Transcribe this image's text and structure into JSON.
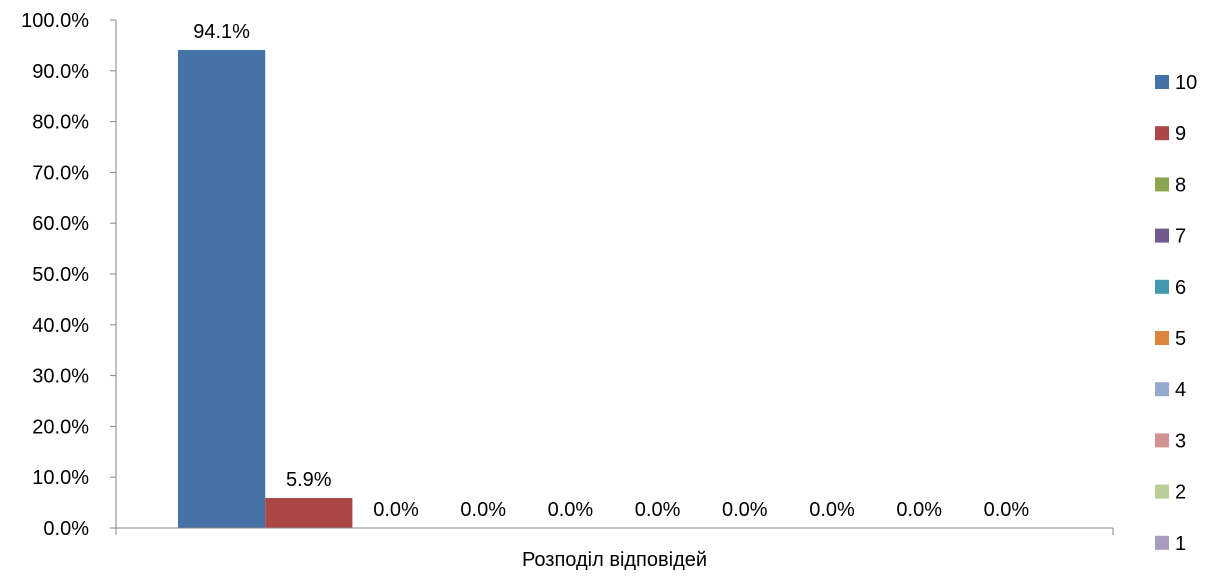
{
  "chart_data": {
    "type": "bar",
    "categories": [
      "Розподіл відповідей"
    ],
    "xlabel": "Розподіл відповідей",
    "ylabel": "",
    "title": "",
    "ylim": [
      0,
      100
    ],
    "yticks": [
      "0.0%",
      "10.0%",
      "20.0%",
      "30.0%",
      "40.0%",
      "50.0%",
      "60.0%",
      "70.0%",
      "80.0%",
      "90.0%",
      "100.0%"
    ],
    "grid": false,
    "legend_position": "right",
    "series": [
      {
        "name": "10",
        "values": [
          94.1
        ],
        "label": "94.1%",
        "color": "#4572A7"
      },
      {
        "name": "9",
        "values": [
          5.9
        ],
        "label": "5.9%",
        "color": "#AA4643"
      },
      {
        "name": "8",
        "values": [
          0.0
        ],
        "label": "0.0%",
        "color": "#89A54E"
      },
      {
        "name": "7",
        "values": [
          0.0
        ],
        "label": "0.0%",
        "color": "#71588F"
      },
      {
        "name": "6",
        "values": [
          0.0
        ],
        "label": "0.0%",
        "color": "#4198AF"
      },
      {
        "name": "5",
        "values": [
          0.0
        ],
        "label": "0.0%",
        "color": "#DB843D"
      },
      {
        "name": "4",
        "values": [
          0.0
        ],
        "label": "0.0%",
        "color": "#93A9CF"
      },
      {
        "name": "3",
        "values": [
          0.0
        ],
        "label": "0.0%",
        "color": "#D19392"
      },
      {
        "name": "2",
        "values": [
          0.0
        ],
        "label": "0.0%",
        "color": "#B9CD96"
      },
      {
        "name": "1",
        "values": [
          0.0
        ],
        "label": "0.0%",
        "color": "#A99BBD"
      }
    ]
  }
}
